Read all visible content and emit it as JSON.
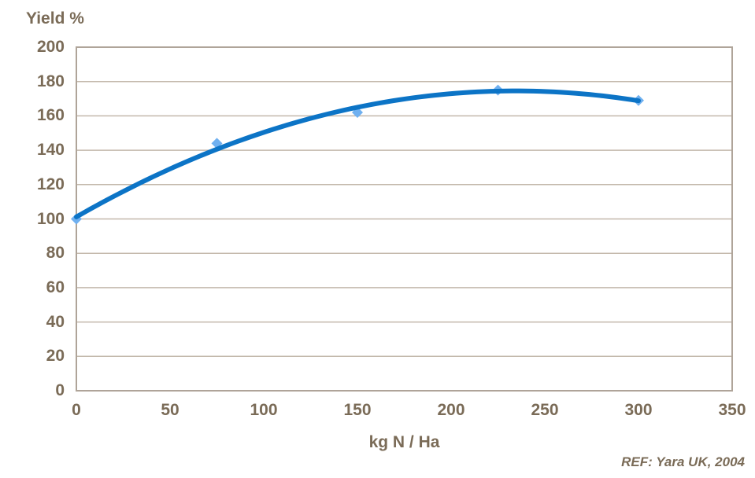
{
  "chart_data": {
    "type": "scatter",
    "title": "Yield %",
    "xlabel": "kg N / Ha",
    "source_note": "REF: Yara UK, 2004",
    "points": [
      {
        "x": 0,
        "y": 100
      },
      {
        "x": 75,
        "y": 144
      },
      {
        "x": 150,
        "y": 162
      },
      {
        "x": 225,
        "y": 175
      },
      {
        "x": 300,
        "y": 169
      }
    ],
    "trendline": "quadratic",
    "xlim": [
      0,
      350
    ],
    "ylim": [
      0,
      200
    ],
    "x_ticks": [
      0,
      50,
      100,
      150,
      200,
      250,
      300,
      350
    ],
    "y_ticks": [
      0,
      20,
      40,
      60,
      80,
      100,
      120,
      140,
      160,
      180,
      200
    ],
    "grid": "horizontal",
    "legend": "none",
    "colors": {
      "line": "#0C74C6",
      "marker": "#6FB0F0",
      "text": "#7A6B57",
      "grid": "#C3B8AB",
      "border": "#AFA499",
      "background": "#FFFFFF"
    }
  }
}
